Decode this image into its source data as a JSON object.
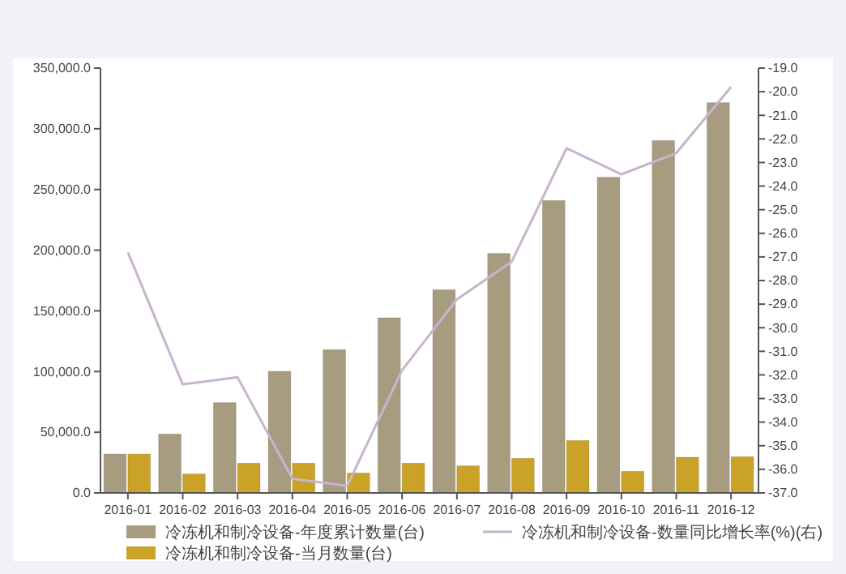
{
  "chart_data": {
    "type": "bar",
    "categories": [
      "2016-01",
      "2016-02",
      "2016-03",
      "2016-04",
      "2016-05",
      "2016-06",
      "2016-07",
      "2016-08",
      "2016-09",
      "2016-10",
      "2016-11",
      "2016-12"
    ],
    "series": [
      {
        "name": "冷冻机和制冷设备-年度累计数量(台)",
        "color": "#a89c80",
        "values": [
          32000,
          48500,
          74400,
          100200,
          118000,
          144300,
          167400,
          197300,
          240900,
          260100,
          290300,
          321500
        ]
      },
      {
        "name": "冷冻机和制冷设备-当月数量(台)",
        "color": "#c9a227",
        "values": [
          32000,
          15600,
          24500,
          24500,
          16400,
          24500,
          22300,
          28500,
          43200,
          17800,
          29400,
          29800
        ]
      },
      {
        "name": "冷冻机和制冷设备-数量同比增长率(%)(右)",
        "type": "line",
        "axis": "y2",
        "color": "#c8b4cc",
        "values": [
          -26.8,
          -32.4,
          -32.1,
          -36.4,
          -36.7,
          -31.8,
          -28.8,
          -27.2,
          -22.4,
          -23.5,
          -22.6,
          -19.8
        ]
      }
    ],
    "ylim": [
      0,
      350000
    ],
    "yticks": [
      {
        "value": 0,
        "label": "0.0"
      },
      {
        "value": 50000,
        "label": "50,000.0"
      },
      {
        "value": 100000,
        "label": "100,000.0"
      },
      {
        "value": 150000,
        "label": "150,000.0"
      },
      {
        "value": 200000,
        "label": "200,000.0"
      },
      {
        "value": 250000,
        "label": "250,000.0"
      },
      {
        "value": 300000,
        "label": "300,000.0"
      },
      {
        "value": 350000,
        "label": "350,000.0"
      }
    ],
    "y2lim": [
      -37,
      -19
    ],
    "y2ticks": [
      {
        "value": -19,
        "label": "-19.0"
      },
      {
        "value": -20,
        "label": "-20.0"
      },
      {
        "value": -21,
        "label": "-21.0"
      },
      {
        "value": -22,
        "label": "-22.0"
      },
      {
        "value": -23,
        "label": "-23.0"
      },
      {
        "value": -24,
        "label": "-24.0"
      },
      {
        "value": -25,
        "label": "-25.0"
      },
      {
        "value": -26,
        "label": "-26.0"
      },
      {
        "value": -27,
        "label": "-27.0"
      },
      {
        "value": -28,
        "label": "-28.0"
      },
      {
        "value": -29,
        "label": "-29.0"
      },
      {
        "value": -30,
        "label": "-30.0"
      },
      {
        "value": -31,
        "label": "-31.0"
      },
      {
        "value": -32,
        "label": "-32.0"
      },
      {
        "value": -33,
        "label": "-33.0"
      },
      {
        "value": -34,
        "label": "-34.0"
      },
      {
        "value": -35,
        "label": "-35.0"
      },
      {
        "value": -36,
        "label": "-36.0"
      },
      {
        "value": -37,
        "label": "-37.0"
      }
    ],
    "grid": false,
    "legend": "bottom",
    "marker": "none"
  }
}
